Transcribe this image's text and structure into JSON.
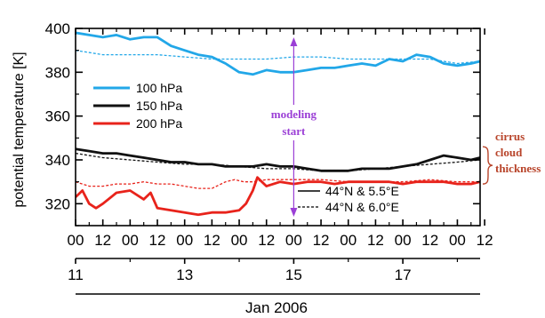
{
  "chart_data": {
    "type": "line",
    "ylabel": "potential temperature [K]",
    "xlabel": "Jan 2006",
    "ylim": [
      310,
      400
    ],
    "yticks": [
      320,
      340,
      360,
      380,
      400
    ],
    "x_unit": "hours since 11 Jan 2006 00 UTC",
    "xlim": [
      0,
      178
    ],
    "hour_ticks": [
      "00",
      "12",
      "00",
      "12",
      "00",
      "12",
      "00",
      "12",
      "00",
      "12",
      "00",
      "12",
      "00",
      "12",
      "00",
      "12"
    ],
    "day_ticks": [
      "11",
      "13",
      "15",
      "17"
    ],
    "grid": false,
    "legend_pressure": [
      {
        "name": "100 hPa",
        "color": "#22a7e8"
      },
      {
        "name": "150 hPa",
        "color": "#111111"
      },
      {
        "name": "200 hPa",
        "color": "#e8231b"
      }
    ],
    "legend_location": [
      {
        "name": "44°N & 5.5°E",
        "style": "solid"
      },
      {
        "name": "44°N & 6.0°E",
        "style": "dashed"
      }
    ],
    "annotations": {
      "modeling_start": {
        "text_line1": "modeling",
        "text_line2": "start",
        "x": 96,
        "color": "#9b3fd6"
      },
      "cirrus": {
        "line1": "cirrus",
        "line2": "cloud",
        "line3": "thickness",
        "color": "#b8442a"
      }
    },
    "series": [
      {
        "level": "100 hPa",
        "location": "44°N & 5.5°E",
        "color": "#22a7e8",
        "x": [
          0,
          6,
          12,
          18,
          24,
          30,
          36,
          42,
          48,
          54,
          60,
          66,
          72,
          78,
          84,
          90,
          96,
          102,
          108,
          114,
          120,
          126,
          132,
          138,
          144,
          150,
          156,
          162,
          168,
          174,
          178
        ],
        "y": [
          398,
          397,
          396,
          397,
          395,
          396,
          396,
          392,
          390,
          388,
          387,
          384,
          380,
          379,
          381,
          380,
          380,
          381,
          382,
          382,
          383,
          384,
          383,
          386,
          385,
          388,
          387,
          384,
          383,
          384,
          385
        ]
      },
      {
        "level": "100 hPa",
        "location": "44°N & 6.0°E",
        "color": "#22a7e8",
        "x": [
          0,
          12,
          24,
          36,
          48,
          60,
          72,
          84,
          96,
          108,
          120,
          132,
          144,
          156,
          168,
          178
        ],
        "y": [
          390,
          388,
          388,
          388,
          387,
          386,
          386,
          386,
          387,
          387,
          386,
          386,
          386,
          386,
          384,
          385
        ]
      },
      {
        "level": "150 hPa",
        "location": "44°N & 5.5°E",
        "color": "#111111",
        "x": [
          0,
          6,
          12,
          18,
          24,
          30,
          36,
          42,
          48,
          54,
          60,
          66,
          72,
          78,
          84,
          90,
          96,
          102,
          108,
          114,
          120,
          126,
          132,
          138,
          144,
          150,
          156,
          162,
          168,
          174,
          178
        ],
        "y": [
          345,
          344,
          343,
          343,
          342,
          341,
          340,
          339,
          339,
          338,
          338,
          337,
          337,
          337,
          338,
          337,
          337,
          336,
          335,
          335,
          335,
          336,
          336,
          336,
          337,
          338,
          340,
          342,
          341,
          340,
          341
        ]
      },
      {
        "level": "150 hPa",
        "location": "44°N & 6.0°E",
        "color": "#111111",
        "x": [
          0,
          12,
          24,
          36,
          48,
          60,
          72,
          84,
          96,
          108,
          120,
          132,
          144,
          156,
          168,
          178
        ],
        "y": [
          343,
          341,
          340,
          339,
          338,
          338,
          337,
          336,
          336,
          335,
          335,
          336,
          337,
          338,
          339,
          340
        ]
      },
      {
        "level": "200 hPa",
        "location": "44°N & 5.5°E",
        "color": "#e8231b",
        "x": [
          0,
          3,
          6,
          9,
          12,
          18,
          24,
          30,
          33,
          36,
          42,
          48,
          54,
          60,
          66,
          72,
          75,
          78,
          80,
          82,
          84,
          90,
          96,
          102,
          108,
          114,
          120,
          126,
          132,
          138,
          144,
          150,
          156,
          162,
          168,
          174,
          178
        ],
        "y": [
          323,
          326,
          320,
          318,
          320,
          325,
          326,
          322,
          325,
          318,
          317,
          316,
          315,
          316,
          316,
          317,
          320,
          326,
          332,
          330,
          328,
          330,
          329,
          330,
          330,
          329,
          330,
          330,
          330,
          330,
          329,
          330,
          330,
          330,
          329,
          329,
          330
        ]
      },
      {
        "level": "200 hPa",
        "location": "44°N & 6.0°E",
        "color": "#e8231b",
        "x": [
          0,
          6,
          12,
          18,
          24,
          30,
          36,
          42,
          48,
          54,
          60,
          66,
          70,
          74,
          78,
          84,
          90,
          96,
          108,
          120,
          132,
          144,
          156,
          168,
          178
        ],
        "y": [
          330,
          328,
          328,
          329,
          329,
          330,
          329,
          329,
          328,
          327,
          327,
          330,
          331,
          330,
          330,
          331,
          331,
          331,
          331,
          330,
          330,
          330,
          331,
          330,
          330
        ]
      }
    ]
  }
}
